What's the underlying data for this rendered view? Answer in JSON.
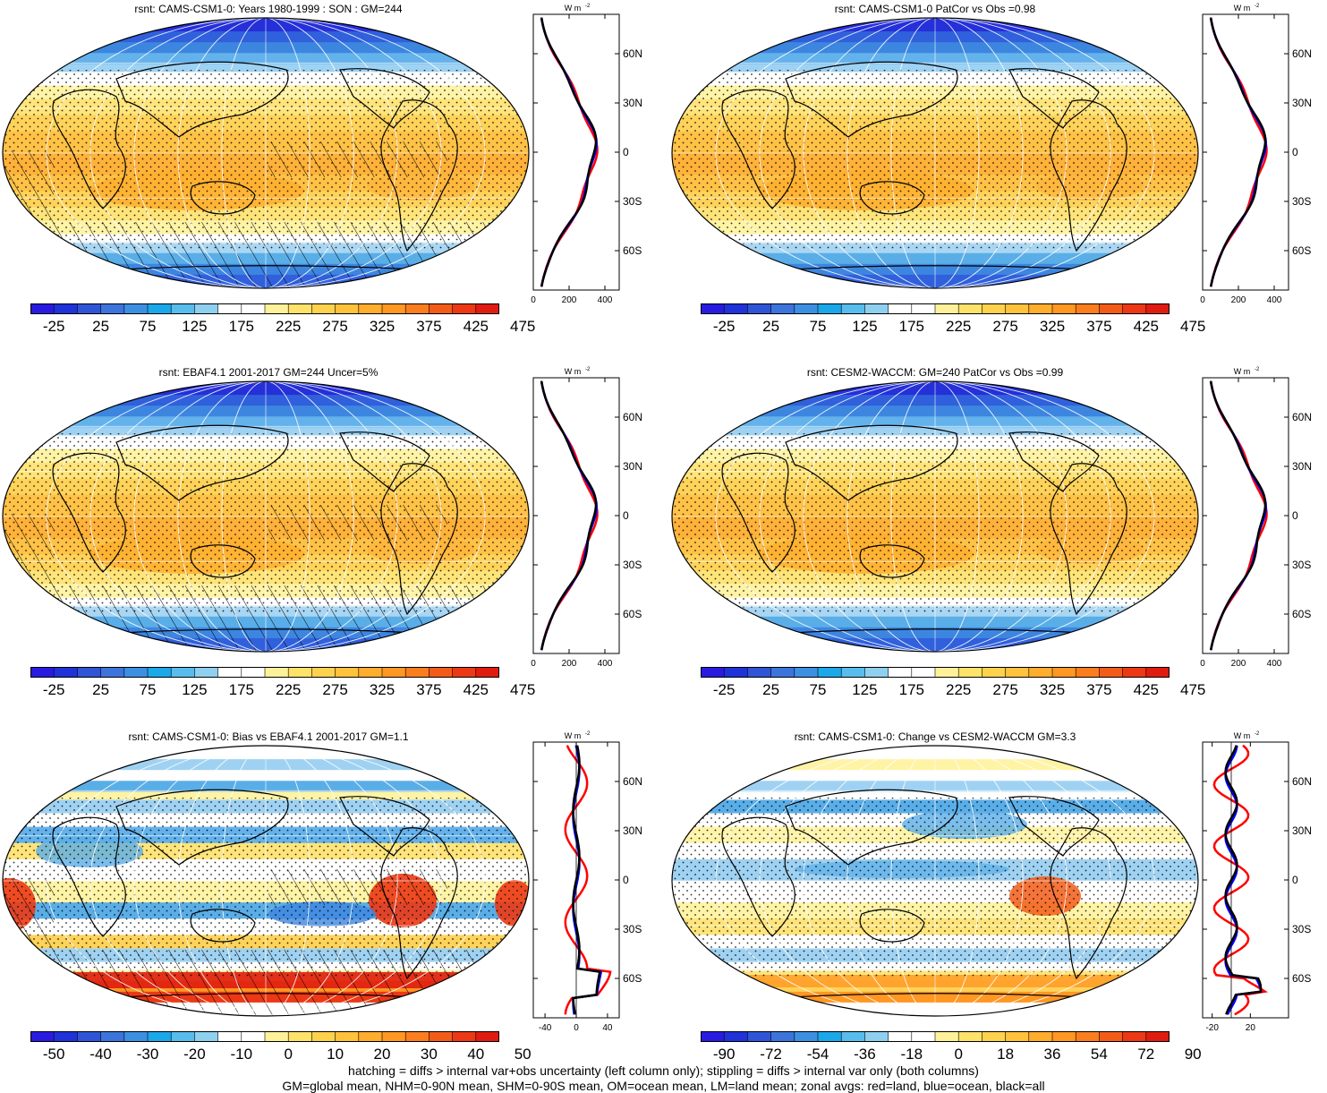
{
  "panels": [
    {
      "title": "rsnt: CAMS-CSM1-0: Years 1980-1999 : SON : GM=244",
      "colorbar": [
        "-25",
        "25",
        "75",
        "125",
        "175",
        "225",
        "275",
        "325",
        "375",
        "425",
        "475"
      ],
      "zonal_ticks": [
        "0",
        "200",
        "400"
      ],
      "zonal_range": [
        0,
        480
      ],
      "kind": "mean",
      "hatch": true
    },
    {
      "title": "rsnt: CAMS-CSM1-0 PatCor vs Obs =0.98",
      "colorbar": [
        "-25",
        "25",
        "75",
        "125",
        "175",
        "225",
        "275",
        "325",
        "375",
        "425",
        "475"
      ],
      "zonal_ticks": [
        "0",
        "200",
        "400"
      ],
      "zonal_range": [
        0,
        480
      ],
      "kind": "mean",
      "hatch": false
    },
    {
      "title": "rsnt: EBAF4.1 2001-2017 GM=244 Uncer=5%",
      "colorbar": [
        "-25",
        "25",
        "75",
        "125",
        "175",
        "225",
        "275",
        "325",
        "375",
        "425",
        "475"
      ],
      "zonal_ticks": [
        "0",
        "200",
        "400"
      ],
      "zonal_range": [
        0,
        480
      ],
      "kind": "mean",
      "hatch": true
    },
    {
      "title": "rsnt: CESM2-WACCM: GM=240 PatCor vs Obs =0.99",
      "colorbar": [
        "-25",
        "25",
        "75",
        "125",
        "175",
        "225",
        "275",
        "325",
        "375",
        "425",
        "475"
      ],
      "zonal_ticks": [
        "0",
        "200",
        "400"
      ],
      "zonal_range": [
        0,
        480
      ],
      "kind": "mean",
      "hatch": false
    },
    {
      "title": "rsnt: CAMS-CSM1-0: Bias vs EBAF4.1 2001-2017  GM=1.1",
      "colorbar": [
        "-50",
        "-40",
        "-30",
        "-20",
        "-10",
        "0",
        "10",
        "20",
        "30",
        "40",
        "50"
      ],
      "zonal_ticks": [
        "-40",
        "0",
        "40"
      ],
      "zonal_range": [
        -55,
        55
      ],
      "kind": "bias",
      "hatch": true
    },
    {
      "title": "rsnt: CAMS-CSM1-0: Change vs CESM2-WACCM GM=3.3",
      "colorbar": [
        "-90",
        "-72",
        "-54",
        "-36",
        "-18",
        "0",
        "18",
        "36",
        "54",
        "72",
        "90"
      ],
      "zonal_ticks": [
        "-20",
        "20"
      ],
      "zonal_range": [
        -30,
        60
      ],
      "kind": "change",
      "hatch": false
    }
  ],
  "lat_labels": [
    "60N",
    "30N",
    "0",
    "30S",
    "60S"
  ],
  "lat_values": [
    60,
    30,
    0,
    -30,
    -60
  ],
  "unit_label": "W m",
  "unit_exp": "-2",
  "colors": {
    "mean": [
      "#2a1be0",
      "#1f33d8",
      "#2f55d6",
      "#3c74dc",
      "#3d8fe2",
      "#1aa8ea",
      "#58bdec",
      "#8fd0f0",
      "#ffffff",
      "#ffffff",
      "#fff19a",
      "#ffe26a",
      "#ffd24d",
      "#ffc23a",
      "#ffad2c",
      "#ff9722",
      "#fa7d1e",
      "#f35c18",
      "#ec3814",
      "#e01c10",
      "#c81010"
    ],
    "diff": [
      "#2a1be0",
      "#1f33d8",
      "#2f55d6",
      "#3c74dc",
      "#3d8fe2",
      "#1aa8ea",
      "#58bdec",
      "#8fd0f0",
      "#ffffff",
      "#ffffff",
      "#fff19a",
      "#ffe26a",
      "#ffd24d",
      "#ffc23a",
      "#ffad2c",
      "#ff9722",
      "#fa7d1e",
      "#f35c18",
      "#ec3814",
      "#e01c10"
    ],
    "land": "#ff0000",
    "ocean": "#0000ff",
    "all": "#000000"
  },
  "footer": [
    "hatching = diffs > internal var+obs uncertainty (left column only); stippling = diffs > internal var only (both columns)",
    "GM=global mean, NHM=0-90N mean, SHM=0-90S mean, OM=ocean mean, LM=land mean; zonal avgs: red=land, blue=ocean, black=all"
  ]
}
